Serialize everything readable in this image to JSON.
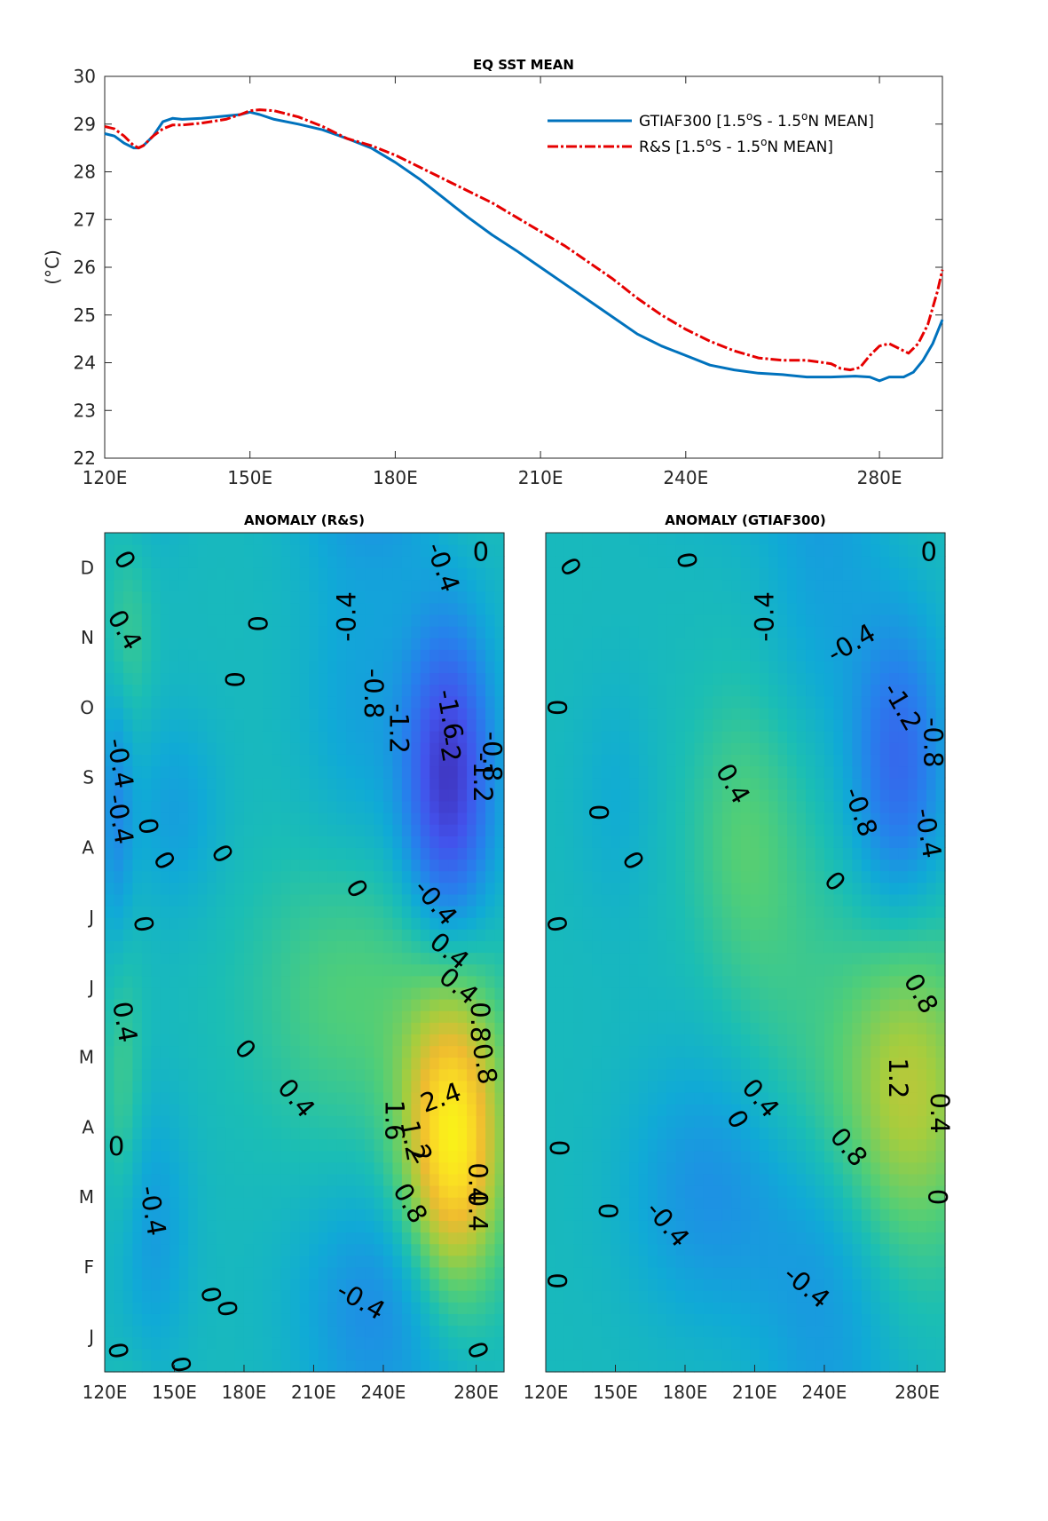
{
  "chart_data": [
    {
      "type": "line",
      "title": "EQ SST MEAN",
      "ylabel": "(°C)",
      "xlim": [
        120,
        293
      ],
      "ylim": [
        22,
        30
      ],
      "xticks": [
        {
          "v": 120,
          "label": "120E"
        },
        {
          "v": 150,
          "label": "150E"
        },
        {
          "v": 180,
          "label": "180E"
        },
        {
          "v": 210,
          "label": "210E"
        },
        {
          "v": 240,
          "label": "240E"
        },
        {
          "v": 280,
          "label": "280E"
        }
      ],
      "yticks": [
        22,
        23,
        24,
        25,
        26,
        27,
        28,
        29,
        30
      ],
      "legend_position": "top-right",
      "series": [
        {
          "name": "GTIAF300 [1.5°S - 1.5°N MEAN]",
          "legend_main": "GTIAF300 [1.5",
          "legend_parts": [
            "S - 1.5",
            "N MEAN]"
          ],
          "color": "#0072bd",
          "style": "solid",
          "x": [
            120,
            122,
            124,
            126,
            127,
            128,
            130,
            132,
            134,
            136,
            140,
            145,
            148,
            150,
            152,
            155,
            160,
            165,
            170,
            175,
            180,
            185,
            190,
            195,
            200,
            205,
            210,
            215,
            220,
            225,
            230,
            235,
            240,
            245,
            250,
            255,
            260,
            265,
            270,
            275,
            278,
            280,
            282,
            285,
            287,
            289,
            291,
            293
          ],
          "y": [
            28.8,
            28.75,
            28.6,
            28.5,
            28.5,
            28.55,
            28.75,
            29.05,
            29.12,
            29.1,
            29.12,
            29.17,
            29.2,
            29.25,
            29.2,
            29.1,
            29.0,
            28.88,
            28.7,
            28.5,
            28.2,
            27.85,
            27.45,
            27.05,
            26.68,
            26.35,
            26.0,
            25.65,
            25.3,
            24.95,
            24.6,
            24.35,
            24.15,
            23.95,
            23.85,
            23.78,
            23.75,
            23.7,
            23.7,
            23.72,
            23.7,
            23.62,
            23.7,
            23.7,
            23.8,
            24.05,
            24.4,
            24.9
          ]
        },
        {
          "name": "R&S [1.5°S - 1.5°N MEAN]",
          "legend_main": "R&S [1.5",
          "legend_parts": [
            "S - 1.5",
            "N MEAN]"
          ],
          "color": "#e60000",
          "style": "dashdot",
          "x": [
            120,
            122,
            124,
            126,
            127,
            128,
            130,
            132,
            134,
            136,
            140,
            145,
            148,
            150,
            152,
            155,
            160,
            165,
            170,
            175,
            180,
            185,
            190,
            195,
            200,
            205,
            210,
            215,
            220,
            225,
            230,
            235,
            240,
            245,
            250,
            255,
            260,
            265,
            270,
            272,
            274,
            276,
            278,
            280,
            282,
            284,
            286,
            288,
            290,
            292,
            293
          ],
          "y": [
            28.95,
            28.9,
            28.75,
            28.55,
            28.5,
            28.55,
            28.75,
            28.9,
            28.98,
            28.98,
            29.02,
            29.1,
            29.2,
            29.28,
            29.3,
            29.28,
            29.15,
            28.95,
            28.7,
            28.55,
            28.35,
            28.1,
            27.85,
            27.6,
            27.35,
            27.05,
            26.75,
            26.45,
            26.1,
            25.75,
            25.35,
            25.0,
            24.7,
            24.45,
            24.25,
            24.1,
            24.05,
            24.05,
            23.98,
            23.88,
            23.85,
            23.9,
            24.15,
            24.35,
            24.4,
            24.3,
            24.2,
            24.4,
            24.8,
            25.5,
            25.95
          ]
        }
      ]
    },
    {
      "type": "heatmap",
      "title": "ANOMALY (R&S)",
      "xlim": [
        120,
        292
      ],
      "xticks": [
        {
          "v": 120,
          "label": "120E"
        },
        {
          "v": 150,
          "label": "150E"
        },
        {
          "v": 180,
          "label": "180E"
        },
        {
          "v": 210,
          "label": "210E"
        },
        {
          "v": 240,
          "label": "240E"
        },
        {
          "v": 280,
          "label": "280E"
        }
      ],
      "months": [
        "J",
        "F",
        "M",
        "A",
        "M",
        "J",
        "J",
        "A",
        "S",
        "O",
        "N",
        "D"
      ],
      "blobs": [
        {
          "lon": 270,
          "t": 3.3,
          "amp": 2.6,
          "slon": 15,
          "st": 1.5,
          "tilt": -0.05
        },
        {
          "lon": 268,
          "t": 8.5,
          "amp": -2.15,
          "slon": 13,
          "st": 1.5,
          "tilt": 0.0
        },
        {
          "lon": 240,
          "t": 1.0,
          "amp": -0.7,
          "slon": 25,
          "st": 1.1,
          "tilt": 0.0
        },
        {
          "lon": 226,
          "t": 5.4,
          "amp": 0.6,
          "slon": 30,
          "st": 1.4,
          "tilt": 0.0
        },
        {
          "lon": 125,
          "t": 8.0,
          "amp": -0.7,
          "slon": 5,
          "st": 1.3,
          "tilt": 0.0
        },
        {
          "lon": 150,
          "t": 8.0,
          "amp": -0.45,
          "slon": 14,
          "st": 1.0,
          "tilt": 0.0
        },
        {
          "lon": 128,
          "t": 4.0,
          "amp": 0.45,
          "slon": 6,
          "st": 1.5,
          "tilt": 0.0
        },
        {
          "lon": 130,
          "t": 10.5,
          "amp": 0.4,
          "slon": 7,
          "st": 1.0,
          "tilt": 0.0
        },
        {
          "lon": 140,
          "t": 2.0,
          "amp": -0.5,
          "slon": 12,
          "st": 1.3,
          "tilt": 0.0
        },
        {
          "lon": 230,
          "t": 9.5,
          "amp": -0.4,
          "slon": 18,
          "st": 1.6,
          "tilt": 0.0
        }
      ],
      "contour_labels": [
        {
          "lon": 128,
          "t": 11.6,
          "text": "0",
          "rot": 60
        },
        {
          "lon": 128,
          "t": 10.6,
          "text": "0.4",
          "rot": 60
        },
        {
          "lon": 185,
          "t": 10.7,
          "text": "0",
          "rot": 90
        },
        {
          "lon": 225,
          "t": 10.8,
          "text": "-0.4",
          "rot": -90
        },
        {
          "lon": 265,
          "t": 11.5,
          "text": "-0.4",
          "rot": 70
        },
        {
          "lon": 282,
          "t": 11.7,
          "text": "0",
          "rot": 0
        },
        {
          "lon": 175,
          "t": 9.9,
          "text": "0",
          "rot": 90
        },
        {
          "lon": 235,
          "t": 9.7,
          "text": "-0.8",
          "rot": 90
        },
        {
          "lon": 246,
          "t": 9.2,
          "text": "-1.2",
          "rot": 90
        },
        {
          "lon": 268,
          "t": 9.4,
          "text": "-1.6",
          "rot": 80
        },
        {
          "lon": 268,
          "t": 8.9,
          "text": "-2",
          "rot": 80
        },
        {
          "lon": 286,
          "t": 8.8,
          "text": "-0.8",
          "rot": 90
        },
        {
          "lon": 282,
          "t": 8.5,
          "text": "-1.2",
          "rot": 90
        },
        {
          "lon": 126,
          "t": 8.7,
          "text": "-0.4",
          "rot": 80
        },
        {
          "lon": 126,
          "t": 7.9,
          "text": "-0.4",
          "rot": 80
        },
        {
          "lon": 138,
          "t": 7.8,
          "text": "0",
          "rot": 80
        },
        {
          "lon": 145,
          "t": 7.3,
          "text": "0",
          "rot": 60
        },
        {
          "lon": 170,
          "t": 7.4,
          "text": "0",
          "rot": 60
        },
        {
          "lon": 136,
          "t": 6.4,
          "text": "0",
          "rot": 80
        },
        {
          "lon": 228,
          "t": 6.9,
          "text": "0",
          "rot": 60
        },
        {
          "lon": 262,
          "t": 6.7,
          "text": "-0.4",
          "rot": 50
        },
        {
          "lon": 268,
          "t": 6.0,
          "text": "0.4",
          "rot": 40
        },
        {
          "lon": 272,
          "t": 5.5,
          "text": "0.4",
          "rot": 40
        },
        {
          "lon": 281,
          "t": 5.0,
          "text": "0.8",
          "rot": 90
        },
        {
          "lon": 283,
          "t": 4.4,
          "text": "0.8",
          "rot": 80
        },
        {
          "lon": 128,
          "t": 5.0,
          "text": "0.4",
          "rot": 80
        },
        {
          "lon": 180,
          "t": 4.6,
          "text": "0",
          "rot": 50
        },
        {
          "lon": 202,
          "t": 3.9,
          "text": "0.4",
          "rot": 50
        },
        {
          "lon": 265,
          "t": 3.9,
          "text": "2.4",
          "rot": -20
        },
        {
          "lon": 244,
          "t": 3.6,
          "text": "1.6",
          "rot": 90
        },
        {
          "lon": 252,
          "t": 3.3,
          "text": "1.2",
          "rot": 80
        },
        {
          "lon": 256,
          "t": 3.1,
          "text": "2",
          "rot": 60
        },
        {
          "lon": 251,
          "t": 2.4,
          "text": "0.8",
          "rot": 60
        },
        {
          "lon": 125,
          "t": 3.2,
          "text": "0",
          "rot": 0
        },
        {
          "lon": 140,
          "t": 2.3,
          "text": "-0.4",
          "rot": 80
        },
        {
          "lon": 280,
          "t": 2.3,
          "text": "0.4",
          "rot": 90
        },
        {
          "lon": 280,
          "t": 2.7,
          "text": "0.4",
          "rot": 90
        },
        {
          "lon": 165,
          "t": 1.1,
          "text": "0",
          "rot": 80
        },
        {
          "lon": 172,
          "t": 0.9,
          "text": "0",
          "rot": 80
        },
        {
          "lon": 230,
          "t": 1.0,
          "text": "-0.4",
          "rot": 30
        },
        {
          "lon": 125,
          "t": 0.3,
          "text": "0",
          "rot": 80
        },
        {
          "lon": 152,
          "t": 0.1,
          "text": "0",
          "rot": 80
        },
        {
          "lon": 280,
          "t": 0.3,
          "text": "0",
          "rot": 70
        }
      ]
    },
    {
      "type": "heatmap",
      "title": "ANOMALY (GTIAF300)",
      "xlim": [
        120,
        292
      ],
      "xticks": [
        {
          "v": 120,
          "label": "120E"
        },
        {
          "v": 150,
          "label": "150E"
        },
        {
          "v": 180,
          "label": "180E"
        },
        {
          "v": 210,
          "label": "210E"
        },
        {
          "v": 240,
          "label": "240E"
        },
        {
          "v": 280,
          "label": "280E"
        }
      ],
      "blobs": [
        {
          "lon": 272,
          "t": 8.7,
          "amp": -1.3,
          "slon": 14,
          "st": 1.4,
          "tilt": 0.0
        },
        {
          "lon": 276,
          "t": 4.0,
          "amp": 1.35,
          "slon": 22,
          "st": 1.6,
          "tilt": 0.0
        },
        {
          "lon": 205,
          "t": 7.7,
          "amp": 0.55,
          "slon": 16,
          "st": 1.4,
          "tilt": 0.0
        },
        {
          "lon": 190,
          "t": 2.6,
          "amp": -0.65,
          "slon": 24,
          "st": 1.3,
          "tilt": 0.0
        },
        {
          "lon": 240,
          "t": 1.5,
          "amp": -0.45,
          "slon": 22,
          "st": 1.2,
          "tilt": 0.0
        },
        {
          "lon": 150,
          "t": 8.2,
          "amp": -0.25,
          "slon": 12,
          "st": 1.2,
          "tilt": 0.0
        },
        {
          "lon": 225,
          "t": 5.5,
          "amp": 0.3,
          "slon": 20,
          "st": 1.8,
          "tilt": 0.0
        },
        {
          "lon": 240,
          "t": 11.0,
          "amp": -0.35,
          "slon": 18,
          "st": 1.4,
          "tilt": 0.0
        }
      ],
      "contour_labels": [
        {
          "lon": 130,
          "t": 11.5,
          "text": "0",
          "rot": 60
        },
        {
          "lon": 180,
          "t": 11.6,
          "text": "0",
          "rot": 80
        },
        {
          "lon": 215,
          "t": 10.8,
          "text": "-0.4",
          "rot": -90
        },
        {
          "lon": 252,
          "t": 10.4,
          "text": "-0.4",
          "rot": -30
        },
        {
          "lon": 285,
          "t": 11.7,
          "text": "0",
          "rot": 0
        },
        {
          "lon": 273,
          "t": 9.5,
          "text": "-1.2",
          "rot": 60
        },
        {
          "lon": 286,
          "t": 9.0,
          "text": "-0.8",
          "rot": 90
        },
        {
          "lon": 124,
          "t": 9.5,
          "text": "0",
          "rot": 90
        },
        {
          "lon": 142,
          "t": 8.0,
          "text": "0",
          "rot": 90
        },
        {
          "lon": 200,
          "t": 8.4,
          "text": "0.4",
          "rot": 60
        },
        {
          "lon": 255,
          "t": 8.0,
          "text": "-0.8",
          "rot": 70
        },
        {
          "lon": 284,
          "t": 7.7,
          "text": "-0.4",
          "rot": 80
        },
        {
          "lon": 157,
          "t": 7.3,
          "text": "0",
          "rot": 60
        },
        {
          "lon": 244,
          "t": 7.0,
          "text": "0",
          "rot": 50
        },
        {
          "lon": 124,
          "t": 6.4,
          "text": "0",
          "rot": 80
        },
        {
          "lon": 281,
          "t": 5.4,
          "text": "0.8",
          "rot": 60
        },
        {
          "lon": 271,
          "t": 4.2,
          "text": "1.2",
          "rot": 90
        },
        {
          "lon": 212,
          "t": 3.9,
          "text": "0.4",
          "rot": 50
        },
        {
          "lon": 202,
          "t": 3.6,
          "text": "0",
          "rot": 60
        },
        {
          "lon": 250,
          "t": 3.2,
          "text": "0.8",
          "rot": 50
        },
        {
          "lon": 289,
          "t": 3.7,
          "text": "0.4",
          "rot": 90
        },
        {
          "lon": 125,
          "t": 3.2,
          "text": "0",
          "rot": 90
        },
        {
          "lon": 146,
          "t": 2.3,
          "text": "0",
          "rot": 90
        },
        {
          "lon": 172,
          "t": 2.1,
          "text": "-0.4",
          "rot": 50
        },
        {
          "lon": 288,
          "t": 2.5,
          "text": "0",
          "rot": 90
        },
        {
          "lon": 124,
          "t": 1.3,
          "text": "0",
          "rot": 90
        },
        {
          "lon": 232,
          "t": 1.2,
          "text": "-0.4",
          "rot": 40
        }
      ]
    }
  ]
}
